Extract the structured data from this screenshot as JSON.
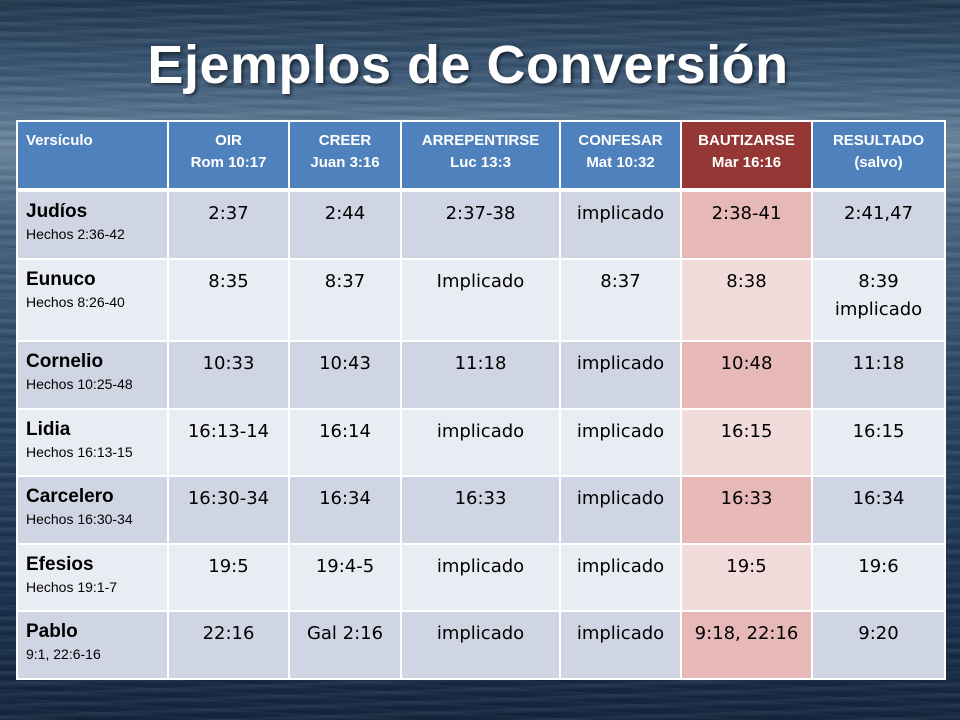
{
  "title": "Ejemplos de Conversión",
  "headers": [
    {
      "label": "Versículo",
      "sub": ""
    },
    {
      "label": "OIR",
      "sub": "Rom 10:17"
    },
    {
      "label": "CREER",
      "sub": "Juan 3:16"
    },
    {
      "label": "ARREPENTIRSE",
      "sub": "Luc 13:3"
    },
    {
      "label": "CONFESAR",
      "sub": "Mat 10:32"
    },
    {
      "label": "BAUTIZARSE",
      "sub": "Mar 16:16"
    },
    {
      "label": "RESULTADO",
      "sub": "(salvo)"
    }
  ],
  "rows": [
    {
      "name": "Judíos",
      "ref": "Hechos  2:36-42",
      "cells": [
        "2:37",
        "2:44",
        "2:37-38",
        "implicado",
        "2:38-41",
        "2:41,47"
      ]
    },
    {
      "name": "Eunuco",
      "ref": "Hechos  8:26-40",
      "cells": [
        "8:35",
        "8:37",
        "Implicado",
        "8:37",
        "8:38",
        "8:39 implicado"
      ]
    },
    {
      "name": "Cornelio",
      "ref": "Hechos 10:25-48",
      "cells": [
        "10:33",
        "10:43",
        "11:18",
        "implicado",
        "10:48",
        "11:18"
      ]
    },
    {
      "name": "Lidia",
      "ref": "Hechos 16:13-15",
      "cells": [
        "16:13-14",
        "16:14",
        "implicado",
        "implicado",
        "16:15",
        "16:15"
      ]
    },
    {
      "name": "Carcelero",
      "ref": "Hechos  16:30-34",
      "cells": [
        "16:30-34",
        "16:34",
        "16:33",
        "implicado",
        "16:33",
        "16:34"
      ]
    },
    {
      "name": "Efesios",
      "ref": "Hechos 19:1-7",
      "cells": [
        "19:5",
        "19:4-5",
        "implicado",
        "implicado",
        "19:5",
        "19:6"
      ]
    },
    {
      "name": "Pablo",
      "ref": "9:1, 22:6-16",
      "cells": [
        "22:16",
        "Gal 2:16",
        "implicado",
        "implicado",
        "9:18, 22:16",
        "9:20"
      ]
    }
  ],
  "colors": {
    "header": "#4f81bd",
    "header_highlight": "#953735",
    "row_odd": "#cfd5e3",
    "row_even": "#e9ecf2",
    "highlight_odd": "#e6b8b7",
    "highlight_even": "#f2dcdb"
  }
}
